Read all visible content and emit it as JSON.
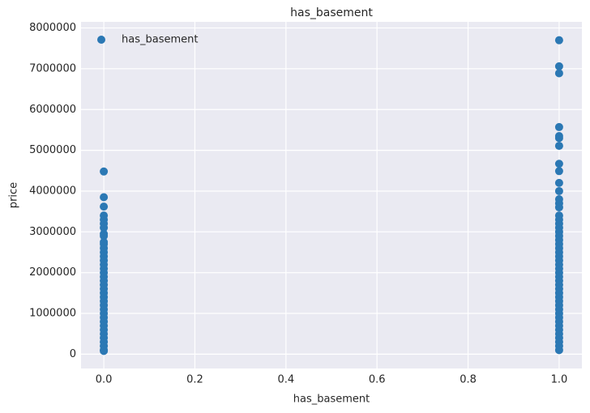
{
  "chart_data": {
    "type": "scatter",
    "title": "has_basement",
    "x_label": "has_basement",
    "y_label": "price",
    "series": [
      {
        "name": "has_basement",
        "color": "#2b78b4",
        "x": [
          0,
          0,
          0,
          0,
          0,
          0,
          0,
          0,
          0,
          0,
          0,
          0,
          0,
          0,
          0,
          0,
          0,
          0,
          0,
          0,
          0,
          0,
          0,
          0,
          0,
          0,
          0,
          0,
          0,
          0,
          0,
          0,
          0,
          0,
          0,
          0,
          0,
          0,
          1,
          1,
          1,
          1,
          1,
          1,
          1,
          1,
          1,
          1,
          1,
          1,
          1,
          1,
          1,
          1,
          1,
          1,
          1,
          1,
          1,
          1,
          1,
          1,
          1,
          1,
          1,
          1,
          1,
          1,
          1,
          1,
          1,
          1,
          1,
          1,
          1,
          1,
          1,
          1,
          1,
          1,
          1,
          1,
          1,
          1,
          1,
          1
        ],
        "values": [
          4480000,
          3850000,
          3620000,
          3400000,
          3300000,
          3200000,
          3100000,
          2950000,
          2900000,
          2750000,
          2700000,
          2600000,
          2500000,
          2400000,
          2300000,
          2200000,
          2100000,
          2000000,
          1900000,
          1800000,
          1700000,
          1600000,
          1500000,
          1400000,
          1300000,
          1200000,
          1100000,
          1000000,
          900000,
          800000,
          700000,
          600000,
          500000,
          400000,
          300000,
          200000,
          100000,
          80000,
          7700000,
          7060000,
          6890000,
          5570000,
          5350000,
          5300000,
          5110000,
          4670000,
          4490000,
          4200000,
          4000000,
          3800000,
          3700000,
          3600000,
          3400000,
          3300000,
          3200000,
          3100000,
          3000000,
          2900000,
          2800000,
          2700000,
          2600000,
          2500000,
          2400000,
          2300000,
          2200000,
          2100000,
          2000000,
          1900000,
          1800000,
          1700000,
          1600000,
          1500000,
          1400000,
          1300000,
          1200000,
          1100000,
          1000000,
          900000,
          800000,
          700000,
          600000,
          500000,
          400000,
          300000,
          200000,
          100000
        ]
      }
    ],
    "xlim": [
      -0.05,
      1.05
    ],
    "xticks": [
      {
        "value": 0,
        "label": "0.0"
      },
      {
        "value": 0.2,
        "label": "0.2"
      },
      {
        "value": 0.4,
        "label": "0.4"
      },
      {
        "value": 0.6,
        "label": "0.6"
      },
      {
        "value": 0.8,
        "label": "0.8"
      },
      {
        "value": 1,
        "label": "1.0"
      }
    ],
    "ylim": [
      -350000,
      8150000
    ],
    "yticks": [
      0,
      1000000,
      2000000,
      3000000,
      4000000,
      5000000,
      6000000,
      7000000,
      8000000
    ],
    "grid": true,
    "legend": "upper left"
  }
}
